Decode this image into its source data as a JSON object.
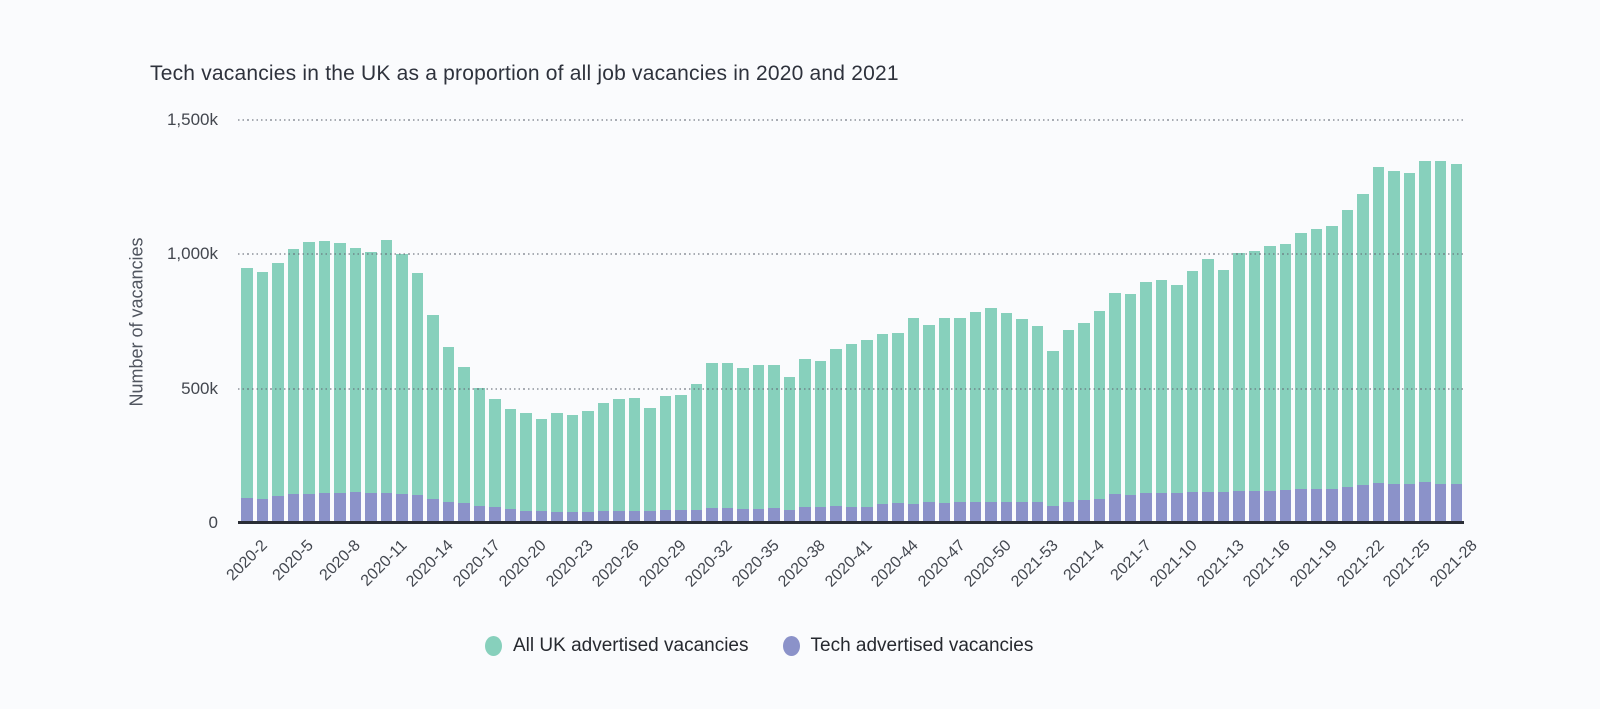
{
  "background_color": "#fafbfd",
  "chart_data": {
    "type": "bar",
    "subtype": "overlaid-columns (tech segment drawn at base of total column)",
    "title": "Tech vacancies in the UK as a proportion of all job vacancies in 2020 and 2021",
    "xlabel": "",
    "ylabel": "Number of vacancies",
    "values_unit": "thousands of vacancies (k)",
    "ylim": [
      0,
      1500
    ],
    "yticks": [
      {
        "value": 0,
        "label": "0"
      },
      {
        "value": 500,
        "label": "500k"
      },
      {
        "value": 1000,
        "label": "1,000k"
      },
      {
        "value": 1500,
        "label": "1,500k"
      }
    ],
    "grid": "dotted horizontal gridlines at 500k, 1000k, 1500k, drawn over bars",
    "x_tick_step": 3,
    "x_ticks_shown": [
      "2020-2",
      "2020-5",
      "2020-8",
      "2020-11",
      "2020-14",
      "2020-17",
      "2020-20",
      "2020-23",
      "2020-26",
      "2020-29",
      "2020-32",
      "2020-35",
      "2020-38",
      "2020-41",
      "2020-44",
      "2020-47",
      "2020-50",
      "2021-53",
      "2021-4",
      "2021-7",
      "2021-10",
      "2021-13",
      "2021-16",
      "2021-19",
      "2021-22",
      "2021-25",
      "2021-28"
    ],
    "categories": [
      "2020-2",
      "2020-3",
      "2020-4",
      "2020-5",
      "2020-6",
      "2020-7",
      "2020-8",
      "2020-9",
      "2020-10",
      "2020-11",
      "2020-12",
      "2020-13",
      "2020-14",
      "2020-15",
      "2020-16",
      "2020-17",
      "2020-18",
      "2020-19",
      "2020-20",
      "2020-21",
      "2020-22",
      "2020-23",
      "2020-24",
      "2020-25",
      "2020-26",
      "2020-27",
      "2020-28",
      "2020-29",
      "2020-30",
      "2020-31",
      "2020-32",
      "2020-33",
      "2020-34",
      "2020-35",
      "2020-36",
      "2020-37",
      "2020-38",
      "2020-39",
      "2020-40",
      "2020-41",
      "2020-42",
      "2020-43",
      "2020-44",
      "2020-45",
      "2020-46",
      "2020-47",
      "2020-48",
      "2020-49",
      "2020-50",
      "2020-51",
      "2020-52",
      "2021-53",
      "2021-2",
      "2021-3",
      "2021-4",
      "2021-5",
      "2021-6",
      "2021-7",
      "2021-8",
      "2021-9",
      "2021-10",
      "2021-11",
      "2021-12",
      "2021-13",
      "2021-14",
      "2021-15",
      "2021-16",
      "2021-17",
      "2021-18",
      "2021-19",
      "2021-20",
      "2021-21",
      "2021-22",
      "2021-23",
      "2021-24",
      "2021-25",
      "2021-26",
      "2021-27",
      "2021-28"
    ],
    "series": [
      {
        "name": "All UK advertised vacancies",
        "color": "#87d0bc",
        "values": [
          950,
          935,
          968,
          1020,
          1045,
          1050,
          1042,
          1025,
          1008,
          1055,
          1000,
          930,
          775,
          655,
          581,
          501,
          460,
          424,
          408,
          387,
          410,
          402,
          418,
          448,
          463,
          464,
          427,
          473,
          476,
          516,
          594,
          595,
          577,
          589,
          589,
          545,
          611,
          605,
          648,
          667,
          682,
          704,
          707,
          765,
          737,
          762,
          763,
          787,
          800,
          781,
          760,
          732,
          641,
          719,
          744,
          788,
          855,
          852,
          896,
          904,
          885,
          937,
          981,
          941,
          1007,
          1011,
          1030,
          1038,
          1081,
          1093,
          1105,
          1167,
          1226,
          1327,
          1311,
          1302,
          1348,
          1348,
          1336
        ]
      },
      {
        "name": "Tech advertised vacancies",
        "color": "#8b92c9",
        "values": [
          92,
          90,
          100,
          108,
          108,
          110,
          112,
          116,
          113,
          110,
          108,
          104,
          88,
          79,
          73,
          63,
          58,
          51,
          46,
          44,
          42,
          41,
          42,
          44,
          44,
          45,
          43,
          50,
          48,
          49,
          57,
          57,
          52,
          52,
          56,
          50,
          59,
          59,
          63,
          60,
          61,
          70,
          73,
          70,
          79,
          76,
          80,
          80,
          80,
          79,
          78,
          79,
          62,
          79,
          86,
          89,
          108,
          106,
          112,
          113,
          110,
          115,
          117,
          114,
          119,
          119,
          121,
          123,
          126,
          127,
          128,
          134,
          141,
          149,
          146,
          144,
          151,
          146,
          146
        ]
      }
    ],
    "legend_position": "bottom-center"
  },
  "colors": {
    "all_uk_bar": "#87d0bc",
    "tech_bar": "#8b92c9",
    "axis_line": "#2a2d35",
    "title_text": "#2e323c",
    "tick_text": "#43474f",
    "y_axis_title_text": "#50555f",
    "legend_text": "#26292f",
    "background": "#fafbfd"
  }
}
